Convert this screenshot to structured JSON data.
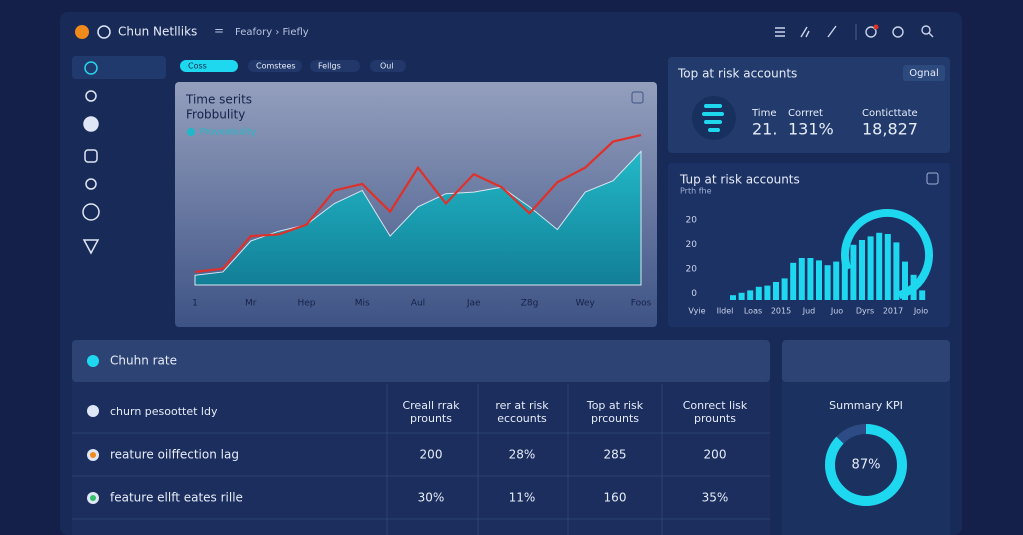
{
  "header": {
    "app_name": "Chun Netlliks",
    "breadcrumb": "Feafory › Fiefly"
  },
  "tabs": [
    "Coss",
    "Comstees",
    "Fellgs",
    "Oul"
  ],
  "time_series": {
    "type": "area",
    "title": "Time serits",
    "subtitle": "Frobbulity",
    "categories": [
      "1",
      null,
      "Mr",
      null,
      "Hep",
      null,
      "Mis",
      null,
      "Aul",
      null,
      "Jae",
      null,
      "Z8g",
      null,
      "Wey",
      null,
      "Foos"
    ],
    "ylim": [
      0,
      100
    ],
    "series": [
      {
        "name": "Proveobulity",
        "color": "#1fb8c9",
        "values": [
          6,
          8,
          27,
          33,
          37,
          50,
          58,
          30,
          48,
          56,
          57,
          60,
          48,
          34,
          57,
          64,
          82
        ]
      },
      {
        "color": "#e0302a",
        "values": [
          8,
          10,
          30,
          31,
          37,
          58,
          62,
          45,
          72,
          50,
          68,
          60,
          44,
          63,
          72,
          88,
          92
        ]
      }
    ]
  },
  "kpi_panel": {
    "title": "Top at risk accounts",
    "button": "Ognal",
    "metrics": [
      {
        "label": "Time",
        "value": "21."
      },
      {
        "label": "Corrret",
        "value": "131%"
      },
      {
        "label": "Conticttate",
        "value": "18,827"
      }
    ]
  },
  "bar_chart": {
    "type": "bar",
    "title": "Tup at risk accounts",
    "subtitle": "Prth fhe",
    "axis_labels": [
      "20",
      "20",
      "20",
      "0"
    ],
    "categories": [
      "Vyie",
      "Ildel",
      "Loas",
      "2015",
      "Jud",
      "Juo",
      "Dyrs",
      "2017",
      "Joio"
    ],
    "ylim": [
      0,
      60
    ],
    "color": "#1ed8f0",
    "values": [
      4,
      6,
      8,
      11,
      12,
      15,
      18,
      31,
      35,
      35,
      33,
      29,
      32,
      42,
      46,
      50,
      53,
      56,
      55,
      48,
      32,
      21,
      8
    ]
  },
  "table": {
    "title": "Chuhn rate",
    "columns": [
      [
        "churn pesoottet ldy"
      ],
      [
        "Creall rrak",
        "prounts"
      ],
      [
        "rer at risk",
        "eccounts"
      ],
      [
        "Top at risk",
        "prcounts"
      ],
      [
        "Conrect lisk",
        "prounts"
      ]
    ],
    "rows": [
      [
        "reature oilffection lag",
        "200",
        "28%",
        "285",
        "200"
      ],
      [
        "feature ellft eates rille",
        "30%",
        "11%",
        "160",
        "35%"
      ]
    ]
  },
  "summary": {
    "type": "donut",
    "title": "Summary KPI",
    "value": 87,
    "value_label": "87%",
    "color": "#1ed8f0"
  }
}
